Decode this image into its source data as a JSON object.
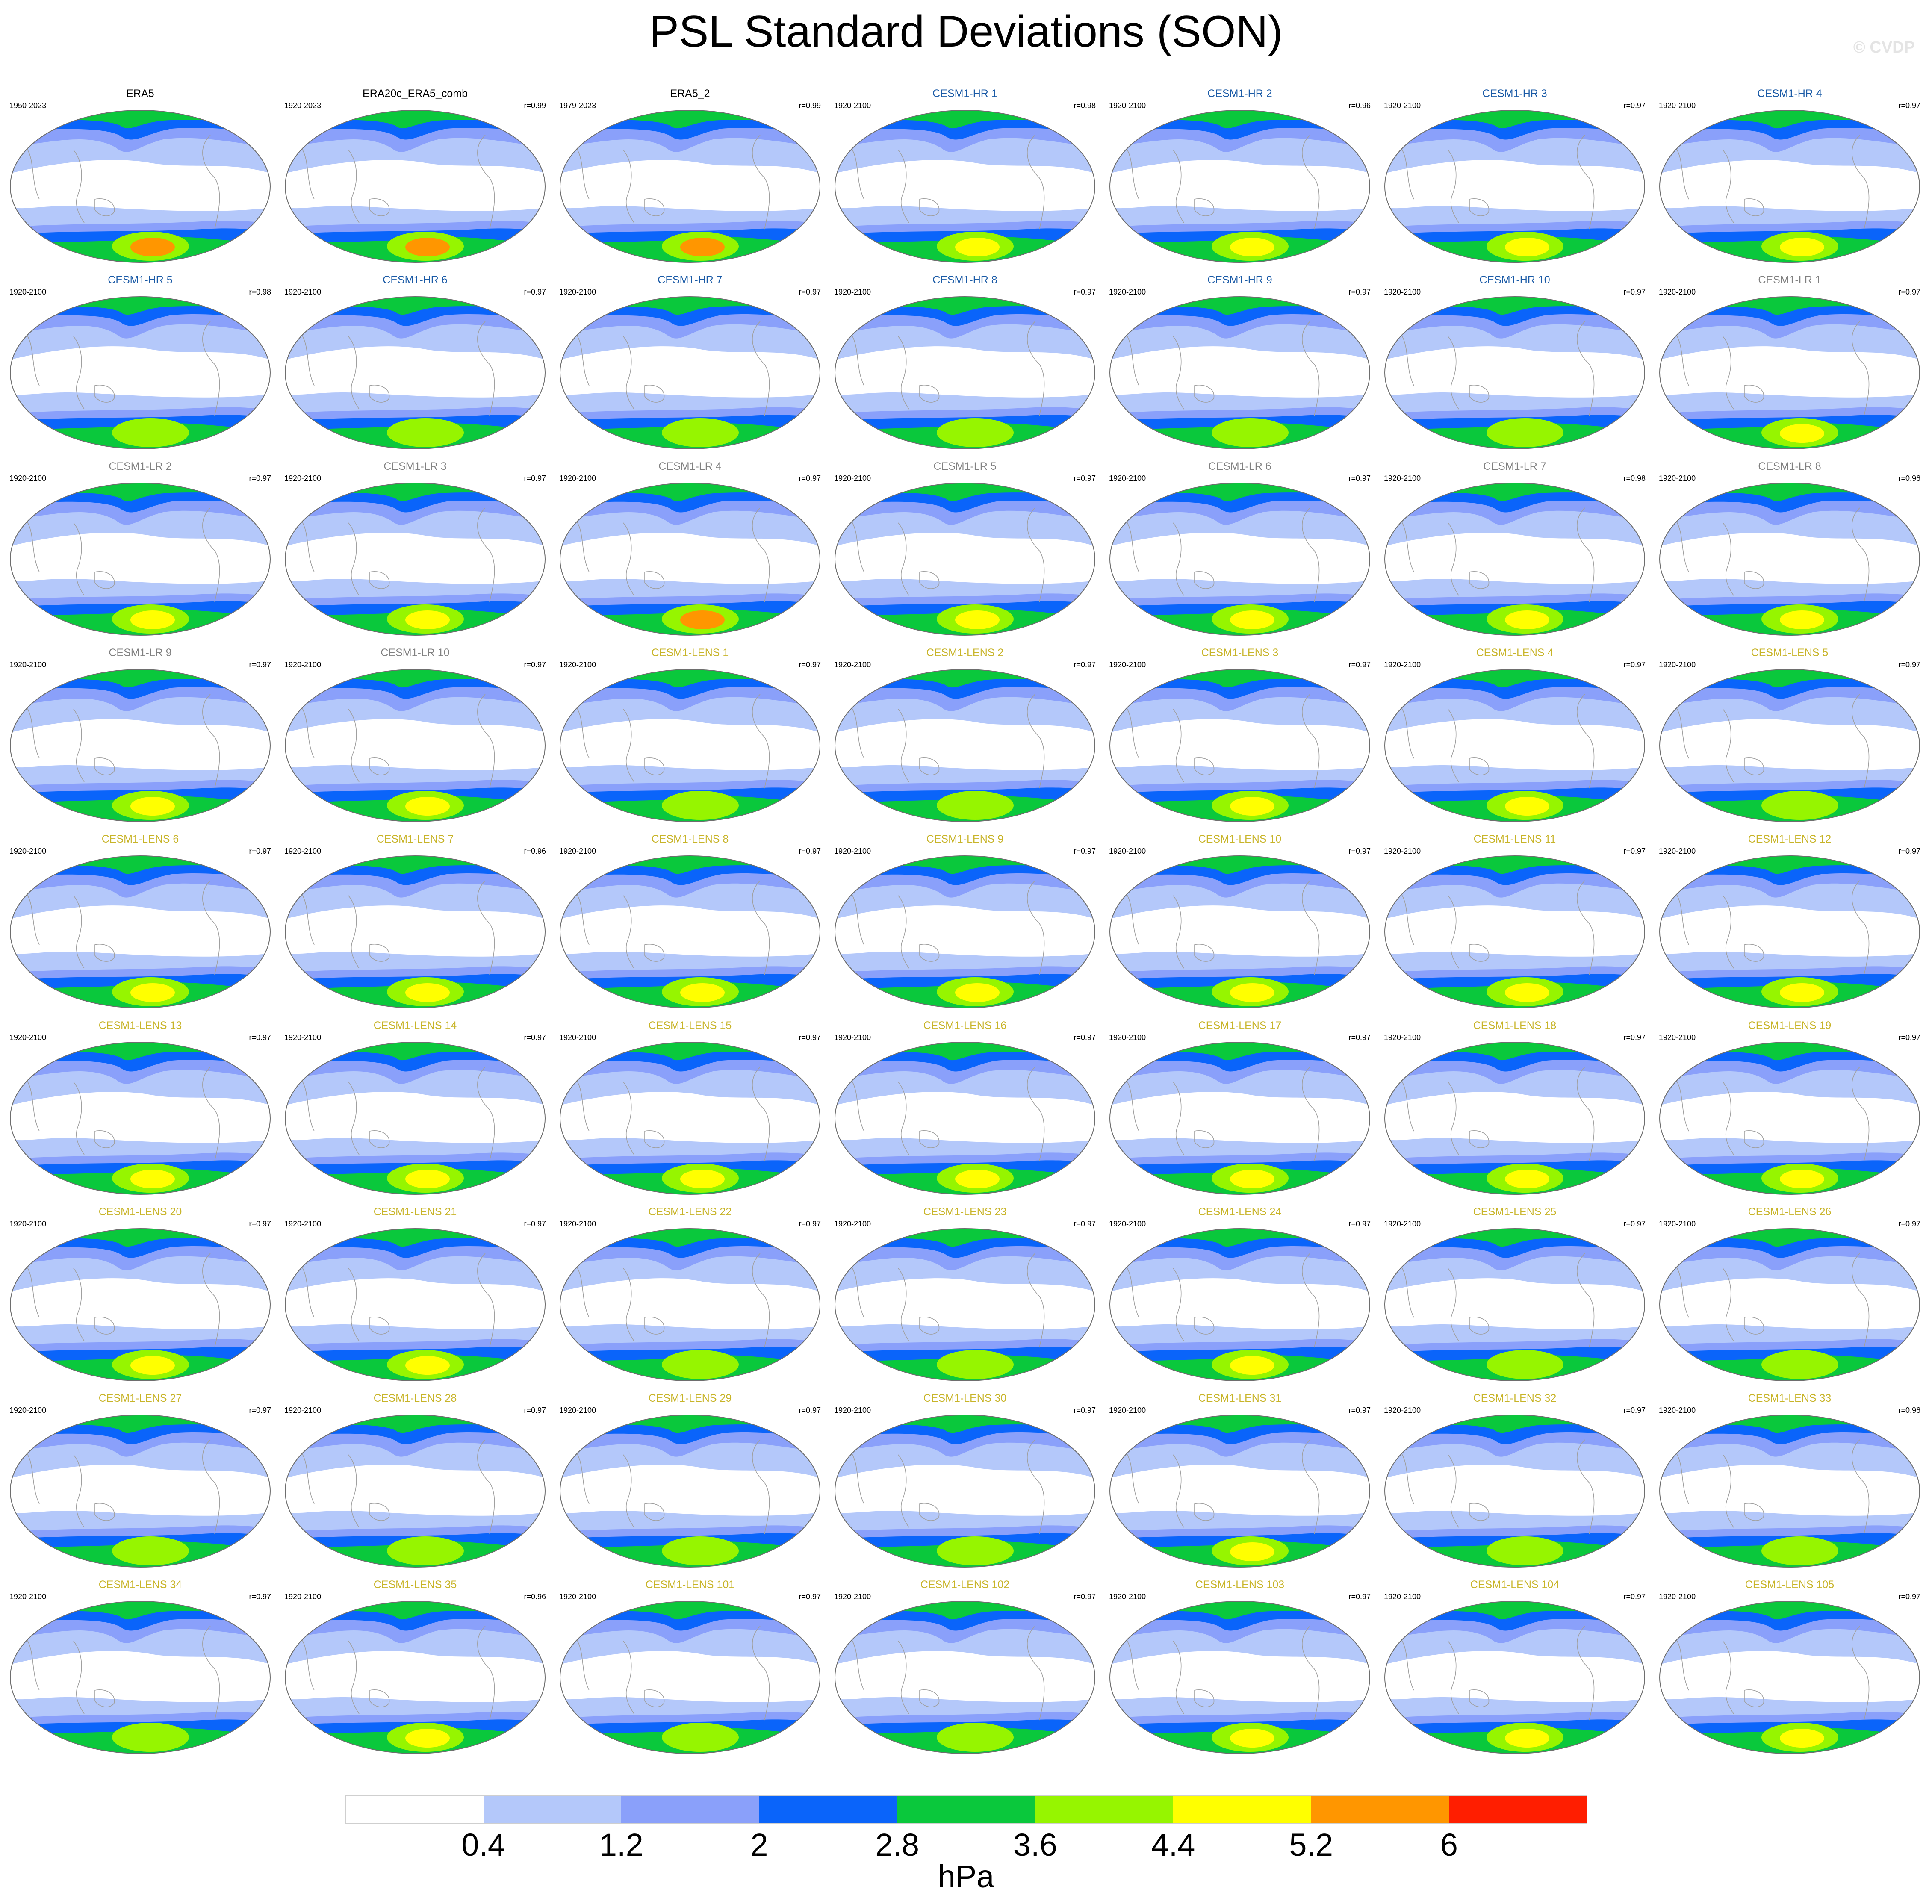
{
  "title": "PSL Standard Deviations (SON)",
  "watermark": "© CVDP",
  "colorbar": {
    "units": "hPa",
    "colors": [
      "#ffffff",
      "#b4c8fa",
      "#8aa0fa",
      "#0a64fa",
      "#0ac83c",
      "#96f500",
      "#ffff00",
      "#ff9600",
      "#ff1e00"
    ],
    "tick_labels": [
      "0.4",
      "1.2",
      "2",
      "2.8",
      "3.6",
      "4.4",
      "5.2",
      "6"
    ]
  },
  "colors": {
    "obs_title": "#000000",
    "hr_title": "#1a5aa6",
    "lr_title": "#808080",
    "lens_title": "#c8b428",
    "coastline": "#a0a0a0"
  },
  "panels": [
    {
      "title": "ERA5",
      "years": "1950-2023",
      "r": "",
      "group": "obs",
      "peak": "orange"
    },
    {
      "title": "ERA20c_ERA5_comb",
      "years": "1920-2023",
      "r": "r=0.99",
      "group": "obs",
      "peak": "orange"
    },
    {
      "title": "ERA5_2",
      "years": "1979-2023",
      "r": "r=0.99",
      "group": "obs",
      "peak": "orange"
    },
    {
      "title": "CESM1-HR 1",
      "years": "1920-2100",
      "r": "r=0.98",
      "group": "hr",
      "peak": "yellow"
    },
    {
      "title": "CESM1-HR 2",
      "years": "1920-2100",
      "r": "r=0.96",
      "group": "hr",
      "peak": "yellow"
    },
    {
      "title": "CESM1-HR 3",
      "years": "1920-2100",
      "r": "r=0.97",
      "group": "hr",
      "peak": "yellow"
    },
    {
      "title": "CESM1-HR 4",
      "years": "1920-2100",
      "r": "r=0.97",
      "group": "hr",
      "peak": "yellow"
    },
    {
      "title": "CESM1-HR 5",
      "years": "1920-2100",
      "r": "r=0.98",
      "group": "hr",
      "peak": "lime"
    },
    {
      "title": "CESM1-HR 6",
      "years": "1920-2100",
      "r": "r=0.97",
      "group": "hr",
      "peak": "lime"
    },
    {
      "title": "CESM1-HR 7",
      "years": "1920-2100",
      "r": "r=0.97",
      "group": "hr",
      "peak": "lime"
    },
    {
      "title": "CESM1-HR 8",
      "years": "1920-2100",
      "r": "r=0.97",
      "group": "hr",
      "peak": "lime"
    },
    {
      "title": "CESM1-HR 9",
      "years": "1920-2100",
      "r": "r=0.97",
      "group": "hr",
      "peak": "lime"
    },
    {
      "title": "CESM1-HR 10",
      "years": "1920-2100",
      "r": "r=0.97",
      "group": "hr",
      "peak": "lime"
    },
    {
      "title": "CESM1-LR 1",
      "years": "1920-2100",
      "r": "r=0.97",
      "group": "lr",
      "peak": "yellow"
    },
    {
      "title": "CESM1-LR 2",
      "years": "1920-2100",
      "r": "r=0.97",
      "group": "lr",
      "peak": "yellow"
    },
    {
      "title": "CESM1-LR 3",
      "years": "1920-2100",
      "r": "r=0.97",
      "group": "lr",
      "peak": "yellow"
    },
    {
      "title": "CESM1-LR 4",
      "years": "1920-2100",
      "r": "r=0.97",
      "group": "lr",
      "peak": "orange"
    },
    {
      "title": "CESM1-LR 5",
      "years": "1920-2100",
      "r": "r=0.97",
      "group": "lr",
      "peak": "yellow"
    },
    {
      "title": "CESM1-LR 6",
      "years": "1920-2100",
      "r": "r=0.97",
      "group": "lr",
      "peak": "yellow"
    },
    {
      "title": "CESM1-LR 7",
      "years": "1920-2100",
      "r": "r=0.98",
      "group": "lr",
      "peak": "yellow"
    },
    {
      "title": "CESM1-LR 8",
      "years": "1920-2100",
      "r": "r=0.96",
      "group": "lr",
      "peak": "yellow"
    },
    {
      "title": "CESM1-LR 9",
      "years": "1920-2100",
      "r": "r=0.97",
      "group": "lr",
      "peak": "yellow"
    },
    {
      "title": "CESM1-LR 10",
      "years": "1920-2100",
      "r": "r=0.97",
      "group": "lr",
      "peak": "yellow"
    },
    {
      "title": "CESM1-LENS 1",
      "years": "1920-2100",
      "r": "r=0.97",
      "group": "lens",
      "peak": "lime"
    },
    {
      "title": "CESM1-LENS 2",
      "years": "1920-2100",
      "r": "r=0.97",
      "group": "lens",
      "peak": "lime"
    },
    {
      "title": "CESM1-LENS 3",
      "years": "1920-2100",
      "r": "r=0.97",
      "group": "lens",
      "peak": "yellow"
    },
    {
      "title": "CESM1-LENS 4",
      "years": "1920-2100",
      "r": "r=0.97",
      "group": "lens",
      "peak": "yellow"
    },
    {
      "title": "CESM1-LENS 5",
      "years": "1920-2100",
      "r": "r=0.97",
      "group": "lens",
      "peak": "lime"
    },
    {
      "title": "CESM1-LENS 6",
      "years": "1920-2100",
      "r": "r=0.97",
      "group": "lens",
      "peak": "yellow"
    },
    {
      "title": "CESM1-LENS 7",
      "years": "1920-2100",
      "r": "r=0.96",
      "group": "lens",
      "peak": "yellow"
    },
    {
      "title": "CESM1-LENS 8",
      "years": "1920-2100",
      "r": "r=0.97",
      "group": "lens",
      "peak": "yellow"
    },
    {
      "title": "CESM1-LENS 9",
      "years": "1920-2100",
      "r": "r=0.97",
      "group": "lens",
      "peak": "yellow"
    },
    {
      "title": "CESM1-LENS 10",
      "years": "1920-2100",
      "r": "r=0.97",
      "group": "lens",
      "peak": "yellow"
    },
    {
      "title": "CESM1-LENS 11",
      "years": "1920-2100",
      "r": "r=0.97",
      "group": "lens",
      "peak": "yellow"
    },
    {
      "title": "CESM1-LENS 12",
      "years": "1920-2100",
      "r": "r=0.97",
      "group": "lens",
      "peak": "yellow"
    },
    {
      "title": "CESM1-LENS 13",
      "years": "1920-2100",
      "r": "r=0.97",
      "group": "lens",
      "peak": "yellow"
    },
    {
      "title": "CESM1-LENS 14",
      "years": "1920-2100",
      "r": "r=0.97",
      "group": "lens",
      "peak": "yellow"
    },
    {
      "title": "CESM1-LENS 15",
      "years": "1920-2100",
      "r": "r=0.97",
      "group": "lens",
      "peak": "yellow"
    },
    {
      "title": "CESM1-LENS 16",
      "years": "1920-2100",
      "r": "r=0.97",
      "group": "lens",
      "peak": "yellow"
    },
    {
      "title": "CESM1-LENS 17",
      "years": "1920-2100",
      "r": "r=0.97",
      "group": "lens",
      "peak": "yellow"
    },
    {
      "title": "CESM1-LENS 18",
      "years": "1920-2100",
      "r": "r=0.97",
      "group": "lens",
      "peak": "yellow"
    },
    {
      "title": "CESM1-LENS 19",
      "years": "1920-2100",
      "r": "r=0.97",
      "group": "lens",
      "peak": "yellow"
    },
    {
      "title": "CESM1-LENS 20",
      "years": "1920-2100",
      "r": "r=0.97",
      "group": "lens",
      "peak": "yellow"
    },
    {
      "title": "CESM1-LENS 21",
      "years": "1920-2100",
      "r": "r=0.97",
      "group": "lens",
      "peak": "yellow"
    },
    {
      "title": "CESM1-LENS 22",
      "years": "1920-2100",
      "r": "r=0.97",
      "group": "lens",
      "peak": "lime"
    },
    {
      "title": "CESM1-LENS 23",
      "years": "1920-2100",
      "r": "r=0.97",
      "group": "lens",
      "peak": "lime"
    },
    {
      "title": "CESM1-LENS 24",
      "years": "1920-2100",
      "r": "r=0.97",
      "group": "lens",
      "peak": "yellow"
    },
    {
      "title": "CESM1-LENS 25",
      "years": "1920-2100",
      "r": "r=0.97",
      "group": "lens",
      "peak": "lime"
    },
    {
      "title": "CESM1-LENS 26",
      "years": "1920-2100",
      "r": "r=0.97",
      "group": "lens",
      "peak": "lime"
    },
    {
      "title": "CESM1-LENS 27",
      "years": "1920-2100",
      "r": "r=0.97",
      "group": "lens",
      "peak": "lime"
    },
    {
      "title": "CESM1-LENS 28",
      "years": "1920-2100",
      "r": "r=0.97",
      "group": "lens",
      "peak": "lime"
    },
    {
      "title": "CESM1-LENS 29",
      "years": "1920-2100",
      "r": "r=0.97",
      "group": "lens",
      "peak": "lime"
    },
    {
      "title": "CESM1-LENS 30",
      "years": "1920-2100",
      "r": "r=0.97",
      "group": "lens",
      "peak": "lime"
    },
    {
      "title": "CESM1-LENS 31",
      "years": "1920-2100",
      "r": "r=0.97",
      "group": "lens",
      "peak": "yellow"
    },
    {
      "title": "CESM1-LENS 32",
      "years": "1920-2100",
      "r": "r=0.97",
      "group": "lens",
      "peak": "lime"
    },
    {
      "title": "CESM1-LENS 33",
      "years": "1920-2100",
      "r": "r=0.96",
      "group": "lens",
      "peak": "lime"
    },
    {
      "title": "CESM1-LENS 34",
      "years": "1920-2100",
      "r": "r=0.97",
      "group": "lens",
      "peak": "lime"
    },
    {
      "title": "CESM1-LENS 35",
      "years": "1920-2100",
      "r": "r=0.96",
      "group": "lens",
      "peak": "yellow"
    },
    {
      "title": "CESM1-LENS 101",
      "years": "1920-2100",
      "r": "r=0.97",
      "group": "lens",
      "peak": "lime"
    },
    {
      "title": "CESM1-LENS 102",
      "years": "1920-2100",
      "r": "r=0.97",
      "group": "lens",
      "peak": "lime"
    },
    {
      "title": "CESM1-LENS 103",
      "years": "1920-2100",
      "r": "r=0.97",
      "group": "lens",
      "peak": "yellow"
    },
    {
      "title": "CESM1-LENS 104",
      "years": "1920-2100",
      "r": "r=0.97",
      "group": "lens",
      "peak": "yellow"
    },
    {
      "title": "CESM1-LENS 105",
      "years": "1920-2100",
      "r": "r=0.97",
      "group": "lens",
      "peak": "yellow"
    }
  ]
}
